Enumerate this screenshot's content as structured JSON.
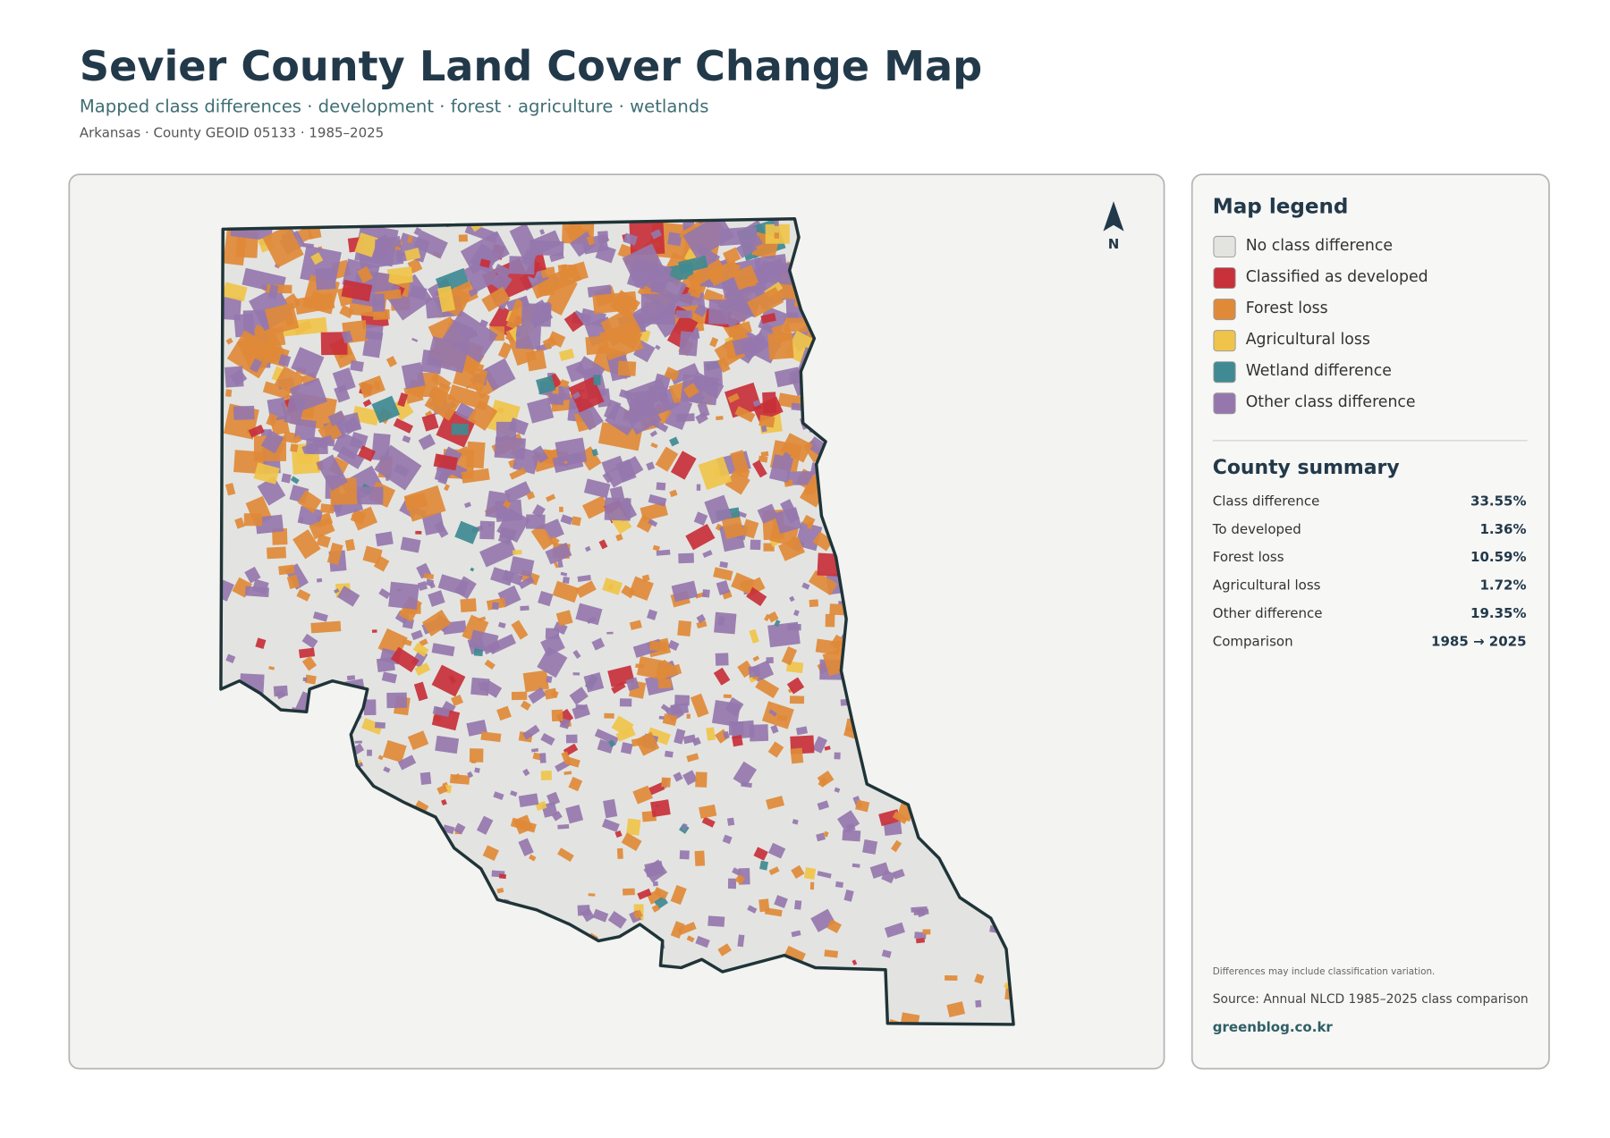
{
  "header": {
    "title": "Sevier County Land Cover Change Map",
    "subtitle": "Mapped class differences · development · forest · agriculture · wetlands",
    "meta": "Arkansas · County GEOID 05133 · 1985–2025"
  },
  "map": {
    "north_label": "N"
  },
  "legend": {
    "title": "Map legend",
    "items": [
      {
        "label": "No class difference",
        "color": "#e3e3df"
      },
      {
        "label": "Classified as developed",
        "color": "#c8303a"
      },
      {
        "label": "Forest loss",
        "color": "#e08a38"
      },
      {
        "label": "Agricultural loss",
        "color": "#f0c44a"
      },
      {
        "label": "Wetland difference",
        "color": "#3f8a93"
      },
      {
        "label": "Other class difference",
        "color": "#9577ad"
      }
    ]
  },
  "summary": {
    "title": "County summary",
    "rows": [
      {
        "label": "Class difference",
        "value": "33.55%"
      },
      {
        "label": "To developed",
        "value": "1.36%"
      },
      {
        "label": "Forest loss",
        "value": "10.59%"
      },
      {
        "label": "Agricultural loss",
        "value": "1.72%"
      },
      {
        "label": "Other difference",
        "value": "19.35%"
      },
      {
        "label": "Comparison",
        "value": "1985 → 2025"
      }
    ]
  },
  "footer": {
    "note": "Differences may include classification variation.",
    "source": "Source: Annual NLCD 1985–2025 class comparison",
    "credit": "greenblog.co.kr"
  }
}
